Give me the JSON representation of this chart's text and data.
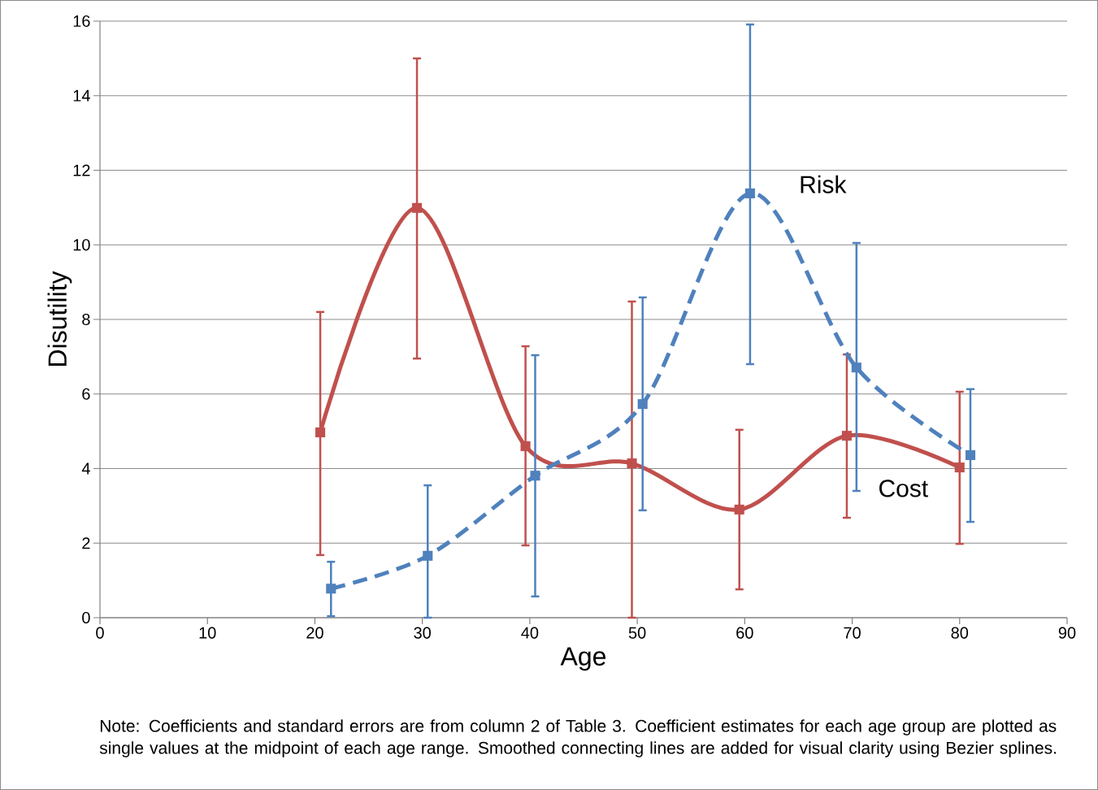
{
  "chart_data": {
    "type": "line",
    "xlabel": "Age",
    "ylabel": "Disutility",
    "xlim": [
      0,
      90
    ],
    "xticks": [
      0,
      10,
      20,
      30,
      40,
      50,
      60,
      70,
      80,
      90
    ],
    "ylim": [
      0,
      16
    ],
    "yticks": [
      0,
      2,
      4,
      6,
      8,
      10,
      12,
      14,
      16
    ],
    "grid": "y",
    "legend": false,
    "marker": "square",
    "series": [
      {
        "name": "Cost",
        "color": "#c0504d",
        "line_style": "solid",
        "x": [
          20.5,
          29.5,
          39.6,
          49.5,
          59.5,
          69.5,
          80
        ],
        "values": [
          4.97,
          10.99,
          4.6,
          4.14,
          2.9,
          4.88,
          4.03
        ],
        "errors": [
          [
            1.68,
            8.2
          ],
          [
            6.95,
            15.0
          ],
          [
            1.94,
            7.28
          ],
          [
            0,
            8.48
          ],
          [
            0.76,
            5.04
          ],
          [
            2.68,
            7.06
          ],
          [
            1.98,
            6.06
          ]
        ]
      },
      {
        "name": "Risk",
        "color": "#4f81bd",
        "line_style": "dashed",
        "x": [
          21.5,
          30.5,
          40.5,
          50.5,
          60.5,
          70.4,
          81
        ],
        "values": [
          0.78,
          1.66,
          3.81,
          5.73,
          11.38,
          6.71,
          4.36
        ],
        "errors": [
          [
            0.04,
            1.5
          ],
          [
            0,
            3.55
          ],
          [
            0.57,
            7.04
          ],
          [
            2.88,
            8.59
          ],
          [
            6.8,
            15.91
          ],
          [
            3.4,
            10.05
          ],
          [
            2.57,
            6.13
          ]
        ]
      }
    ],
    "annotations": [
      "Note: Coefficients and standard errors are from column 2 of Table 3.  Coefficient estimates for each age group are plotted as single values at the midpoint of each age range.  Smoothed connecting lines are added for visual clarity using Bezier splines."
    ]
  }
}
